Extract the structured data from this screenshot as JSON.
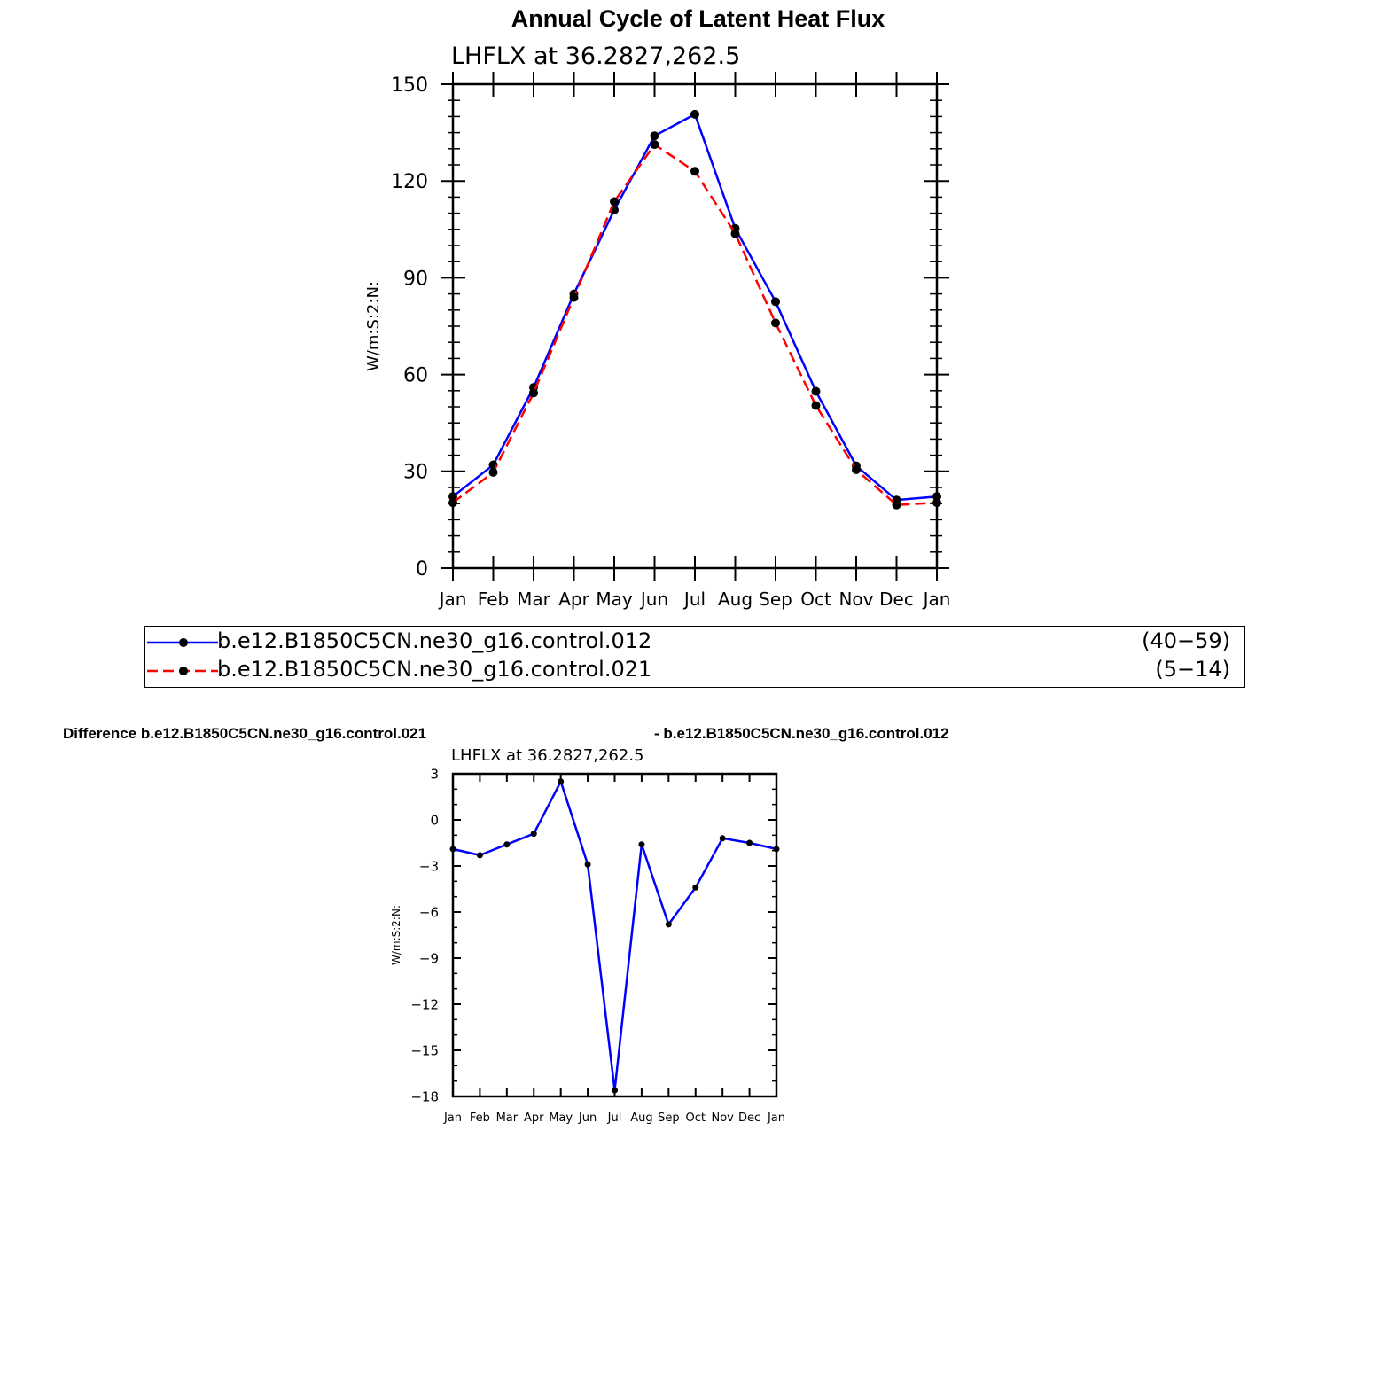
{
  "title": "Annual Cycle of Latent Heat Flux",
  "difference_title_left": "Difference b.e12.B1850C5CN.ne30_g16.control.021",
  "difference_title_right": "- b.e12.B1850C5CN.ne30_g16.control.012",
  "legend": [
    {
      "label": "b.e12.B1850C5CN.ne30_g16.control.012",
      "range": "(40−59)",
      "color": "#0000ff",
      "style": "solid"
    },
    {
      "label": "b.e12.B1850C5CN.ne30_g16.control.021",
      "range": "(5−14)",
      "color": "#ff0000",
      "style": "dashed"
    }
  ],
  "chart_data": [
    {
      "type": "line",
      "subtitle": "LHFLX at 36.2827,262.5",
      "ylabel": "W/m:S:2:N:",
      "xlabel": "",
      "categories": [
        "Jan",
        "Feb",
        "Mar",
        "Apr",
        "May",
        "Jun",
        "Jul",
        "Aug",
        "Sep",
        "Oct",
        "Nov",
        "Dec",
        "Jan"
      ],
      "ylim": [
        0,
        150
      ],
      "yticks": [
        0,
        30,
        60,
        90,
        120,
        150
      ],
      "series": [
        {
          "name": "b.e12.B1850C5CN.ne30_g16.control.012",
          "color": "#0000ff",
          "dash": false,
          "values": [
            22.2,
            32.0,
            56.0,
            85.0,
            111.0,
            134.0,
            140.7,
            105.3,
            82.6,
            54.8,
            31.7,
            21.1,
            22.2
          ]
        },
        {
          "name": "b.e12.B1850C5CN.ne30_g16.control.021",
          "color": "#ff0000",
          "dash": true,
          "values": [
            20.3,
            29.7,
            54.3,
            83.9,
            113.6,
            131.3,
            123.0,
            103.7,
            76.0,
            50.4,
            30.5,
            19.6,
            20.3
          ]
        }
      ]
    },
    {
      "type": "line",
      "subtitle": "LHFLX at 36.2827,262.5",
      "ylabel": "W/m:S:2:N:",
      "xlabel": "",
      "categories": [
        "Jan",
        "Feb",
        "Mar",
        "Apr",
        "May",
        "Jun",
        "Jul",
        "Aug",
        "Sep",
        "Oct",
        "Nov",
        "Dec",
        "Jan"
      ],
      "ylim": [
        -18,
        3
      ],
      "yticks": [
        -18,
        -15,
        -12,
        -9,
        -6,
        -3,
        0,
        3
      ],
      "series": [
        {
          "color": "#0000ff",
          "dash": false,
          "values": [
            -1.9,
            -2.3,
            -1.6,
            -0.9,
            2.5,
            -2.9,
            -17.6,
            -1.6,
            -6.8,
            -4.4,
            -1.2,
            -1.5,
            -1.9
          ]
        }
      ]
    }
  ]
}
